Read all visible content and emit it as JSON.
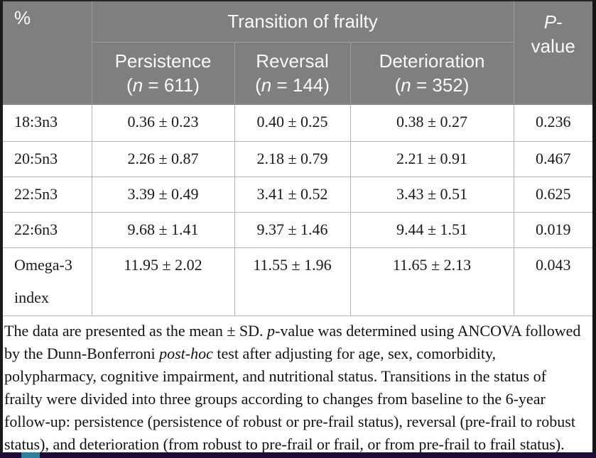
{
  "table": {
    "unit_label": "%",
    "group_header": "Transition of frailty",
    "p_header": {
      "symbol": "P",
      "dash": "-",
      "word": "value"
    },
    "columns": [
      {
        "name": "Persistence",
        "n_open": "(",
        "n_symbol": "n",
        "n_rest": " = 611)"
      },
      {
        "name": "Reversal",
        "n_open": "(",
        "n_symbol": "n",
        "n_rest": " = 144)"
      },
      {
        "name": "Deterioration",
        "n_open": "(",
        "n_symbol": "n",
        "n_rest": " = 352)"
      }
    ],
    "rows": [
      {
        "label": "18:3n3",
        "values": [
          "0.36 ± 0.23",
          "0.40 ± 0.25",
          "0.38 ± 0.27"
        ],
        "p": "0.236"
      },
      {
        "label": "20:5n3",
        "values": [
          "2.26 ± 0.87",
          "2.18 ± 0.79",
          "2.21 ± 0.91"
        ],
        "p": "0.467"
      },
      {
        "label": "22:5n3",
        "values": [
          "3.39 ± 0.49",
          "3.41 ± 0.52",
          "3.43 ± 0.51"
        ],
        "p": "0.625"
      },
      {
        "label": "22:6n3",
        "values": [
          "9.68 ± 1.41",
          "9.37 ± 1.46",
          "9.44 ± 1.51"
        ],
        "p": "0.019"
      },
      {
        "label": "Omega-3 index",
        "values": [
          "11.95 ± 2.02",
          "11.55 ± 1.96",
          "11.65 ± 2.13"
        ],
        "p": "0.043"
      }
    ]
  },
  "footnote": {
    "lines": [
      [
        {
          "text": "The data are presented as the mean ± SD. ",
          "italic": false
        },
        {
          "text": "p",
          "italic": true
        },
        {
          "text": "-value was determined using ANCOVA followed",
          "italic": false
        }
      ],
      [
        {
          "text": "by the Dunn-Bonferroni ",
          "italic": false
        },
        {
          "text": "post-hoc",
          "italic": true
        },
        {
          "text": " test after adjusting for age, sex, comorbidity,",
          "italic": false
        }
      ],
      [
        {
          "text": "polypharmacy, cognitive impairment, and nutritional status. Transitions in the status of",
          "italic": false
        }
      ],
      [
        {
          "text": "frailty were divided into three groups according to changes from baseline to the 6-year",
          "italic": false
        }
      ],
      [
        {
          "text": "follow-up: persistence (persistence of robust or pre-frail status), reversal (pre-frail to robust",
          "italic": false
        }
      ],
      [
        {
          "text": "status), and deterioration (from robust to pre-frail or frail, or from pre-frail to frail status).",
          "italic": false
        }
      ]
    ]
  },
  "colors": {
    "header_background": "#7f7f7f",
    "header_text": "#fafafa",
    "body_grid_line": "#b5b5b5",
    "frame_dark": "#1b1b1b",
    "bottom_bar": "#200a38",
    "bottom_bar_marker": "#2e7f99"
  }
}
